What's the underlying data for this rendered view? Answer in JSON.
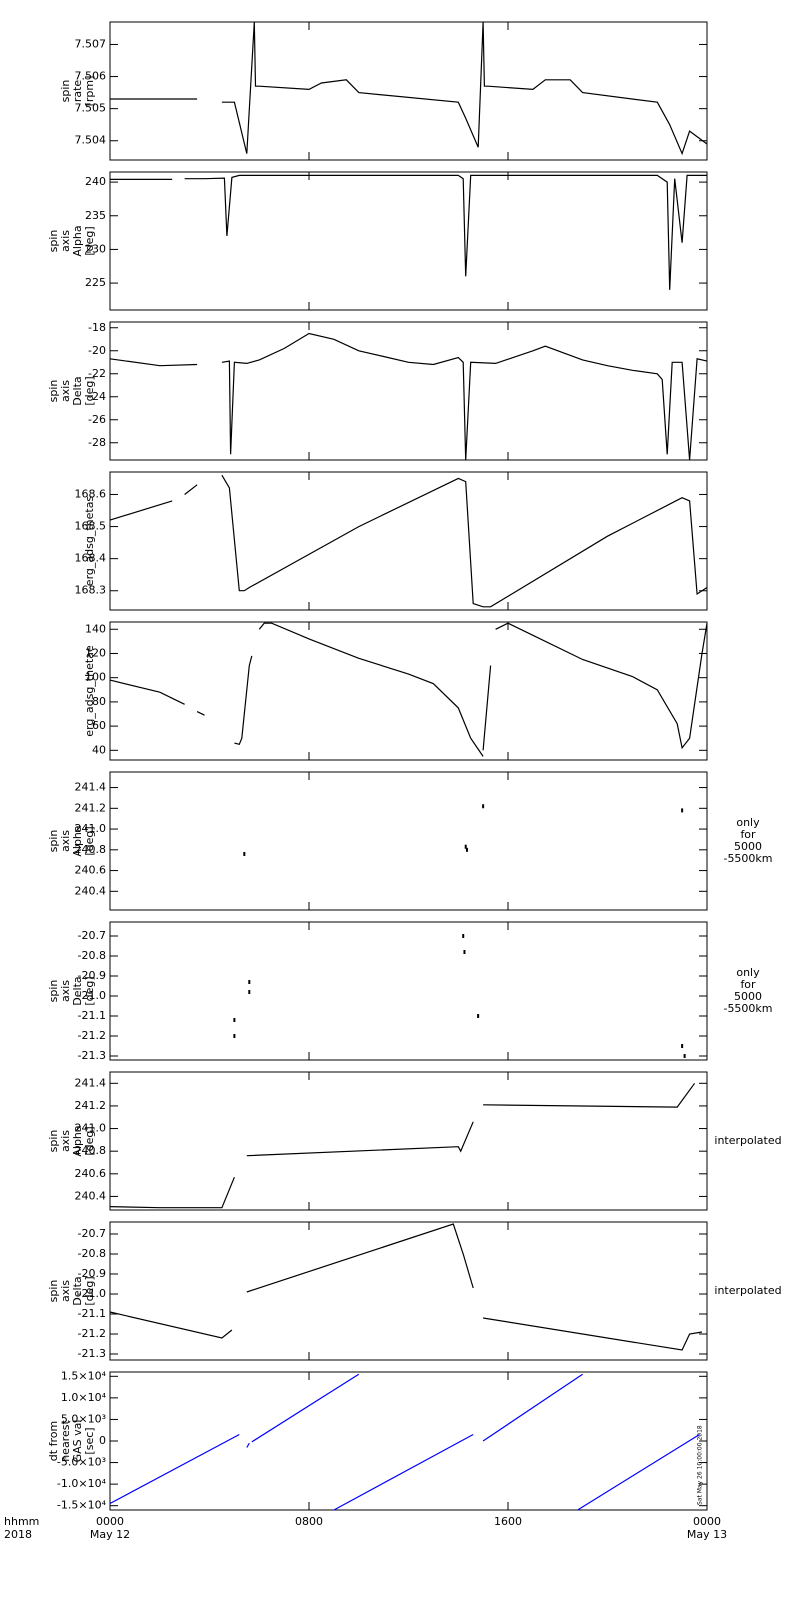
{
  "chart_data": [
    {
      "type": "line",
      "ylabel": [
        "spin",
        "rate",
        "[rpm]"
      ],
      "color": "#000000",
      "xlim": [
        0,
        24
      ],
      "xticks": [
        0,
        8,
        16,
        24
      ],
      "ylim": [
        7.5034,
        7.5077
      ],
      "yticks": [
        7.504,
        7.505,
        7.506,
        7.507
      ],
      "x": [
        0,
        3.5,
        null,
        4.5,
        5.0,
        5.5,
        5.8,
        5.85,
        6.0,
        8.0,
        8.5,
        9.5,
        10.0,
        14.0,
        14.3,
        14.8,
        15.0,
        15.05,
        15.2,
        17.0,
        17.5,
        18.5,
        19.0,
        22.0,
        22.5,
        23.0,
        23.3,
        24.0
      ],
      "values": [
        7.5053,
        7.5053,
        null,
        7.5052,
        7.5052,
        7.5036,
        7.5077,
        7.5057,
        7.5057,
        7.5056,
        7.5058,
        7.5059,
        7.5055,
        7.5052,
        7.5047,
        7.5038,
        7.5077,
        7.5057,
        7.5057,
        7.5056,
        7.5059,
        7.5059,
        7.5055,
        7.5052,
        7.5045,
        7.5036,
        7.5043,
        7.5039
      ]
    },
    {
      "type": "line",
      "ylabel": [
        "spin",
        "axis",
        "Alpha",
        "[deg]"
      ],
      "color": "#000000",
      "xlim": [
        0,
        24
      ],
      "xticks": [
        0,
        8,
        16,
        24
      ],
      "ylim": [
        221,
        241.5
      ],
      "yticks": [
        225,
        230,
        235,
        240
      ],
      "x": [
        0,
        2.5,
        null,
        3.0,
        3.8,
        4.6,
        4.7,
        4.9,
        5.2,
        14.0,
        14.2,
        14.3,
        14.5,
        22.0,
        22.4,
        22.5,
        22.7,
        23.0,
        23.2,
        24.0
      ],
      "values": [
        240.4,
        240.4,
        null,
        240.5,
        240.5,
        240.6,
        232,
        240.7,
        241,
        241,
        240.5,
        226,
        241,
        241,
        240,
        224,
        240.5,
        231,
        241,
        241
      ]
    },
    {
      "type": "line",
      "ylabel": [
        "spin",
        "axis",
        "Delta",
        "[deg]"
      ],
      "color": "#000000",
      "xlim": [
        0,
        24
      ],
      "xticks": [
        0,
        8,
        16,
        24
      ],
      "ylim": [
        -29.5,
        -17.5
      ],
      "yticks": [
        -28,
        -26,
        -24,
        -22,
        -20,
        -18
      ],
      "x": [
        0,
        2.0,
        3.5,
        null,
        4.5,
        4.8,
        4.85,
        5.0,
        5.5,
        6.0,
        7.0,
        8.0,
        9.0,
        10.0,
        11.0,
        12.0,
        13.0,
        14.0,
        14.2,
        14.3,
        14.5,
        15.5,
        17.0,
        17.5,
        19.0,
        20.0,
        21.0,
        22.0,
        22.2,
        22.4,
        22.6,
        23.0,
        23.3,
        23.6,
        24.0
      ],
      "values": [
        -20.7,
        -21.3,
        -21.2,
        null,
        -21,
        -20.9,
        -29,
        -21,
        -21.1,
        -20.8,
        -19.8,
        -18.5,
        -19,
        -20,
        -20.5,
        -21,
        -21.2,
        -20.6,
        -21,
        -29.5,
        -21,
        -21.1,
        -20,
        -19.6,
        -20.8,
        -21.3,
        -21.7,
        -22,
        -22.5,
        -29,
        -21,
        -21,
        -29.5,
        -20.7,
        -20.9
      ]
    },
    {
      "type": "line",
      "ylabel": [
        "erg_adsg_thetas"
      ],
      "color": "#000000",
      "xlim": [
        0,
        24
      ],
      "xticks": [
        0,
        8,
        16,
        24
      ],
      "ylim": [
        168.24,
        168.67
      ],
      "yticks": [
        168.3,
        168.4,
        168.5,
        168.6
      ],
      "x": [
        0,
        2.5,
        null,
        3.0,
        3.5,
        null,
        4.5,
        4.8,
        5.2,
        5.4,
        5.6,
        10.0,
        14.0,
        14.3,
        14.6,
        15.0,
        15.3,
        20.0,
        23.0,
        23.3,
        23.6,
        24.0
      ],
      "values": [
        168.52,
        168.58,
        null,
        168.6,
        168.63,
        null,
        168.66,
        168.62,
        168.3,
        168.3,
        168.31,
        168.5,
        168.65,
        168.64,
        168.26,
        168.25,
        168.25,
        168.47,
        168.59,
        168.58,
        168.29,
        168.31
      ]
    },
    {
      "type": "line",
      "ylabel": [
        "erg_adsg_thetae"
      ],
      "color": "#000000",
      "xlim": [
        0,
        24
      ],
      "xticks": [
        0,
        8,
        16,
        24
      ],
      "ylim": [
        32,
        146
      ],
      "yticks": [
        40,
        60,
        80,
        100,
        120,
        140
      ],
      "x": [
        0,
        2.0,
        3.0,
        null,
        3.5,
        3.8,
        null,
        5.0,
        5.2,
        5.3,
        5.6,
        5.7,
        null,
        6.0,
        6.2,
        6.5,
        8.0,
        10.0,
        12.0,
        13.0,
        14.0,
        14.5,
        15.0,
        null,
        15.0,
        15.3,
        null,
        15.5,
        16.0,
        17.0,
        19.0,
        21.0,
        22.0,
        22.8,
        23.0,
        23.3,
        23.8,
        24.0
      ],
      "values": [
        98,
        88,
        78,
        null,
        72,
        69,
        null,
        46,
        45,
        50,
        110,
        118,
        null,
        140,
        145,
        145,
        132,
        116,
        103,
        95,
        75,
        50,
        35,
        null,
        40,
        110,
        null,
        140,
        145,
        135,
        115,
        101,
        90,
        62,
        42,
        50,
        120,
        145
      ]
    },
    {
      "type": "scatter",
      "ylabel": [
        "spin",
        "axis",
        "Alpha",
        "[deg]"
      ],
      "annotation": [
        "only",
        "for",
        "5000",
        "-5500km"
      ],
      "color": "#000000",
      "xlim": [
        0,
        24
      ],
      "xticks": [
        0,
        8,
        16,
        24
      ],
      "ylim": [
        240.22,
        241.55
      ],
      "yticks": [
        240.4,
        240.6,
        240.8,
        {
          "value": 241,
          "label": "241.0"
        },
        241.2,
        241.4
      ],
      "x": [
        5.4,
        14.3,
        14.35,
        15.0,
        23.0
      ],
      "values": [
        240.76,
        240.83,
        240.8,
        241.22,
        241.18
      ]
    },
    {
      "type": "scatter",
      "ylabel": [
        "spin",
        "axis",
        "Delta",
        "[deg]"
      ],
      "annotation": [
        "only",
        "for",
        "5000",
        "-5500km"
      ],
      "color": "#000000",
      "xlim": [
        0,
        24
      ],
      "xticks": [
        0,
        8,
        16,
        24
      ],
      "ylim": [
        -21.32,
        -20.63
      ],
      "yticks": [
        -21.3,
        -21.2,
        -21.1,
        {
          "value": -21,
          "label": "-21.0"
        },
        -20.9,
        -20.8,
        -20.7
      ],
      "x": [
        5.0,
        5.0,
        5.6,
        5.6,
        14.2,
        14.25,
        14.8,
        23.0,
        23.1
      ],
      "values": [
        -21.12,
        -21.2,
        -20.93,
        -20.98,
        -20.7,
        -20.78,
        -21.1,
        -21.25,
        -21.3
      ]
    },
    {
      "type": "line",
      "ylabel": [
        "spin",
        "axis",
        "Alpha",
        "[deg]"
      ],
      "annotation": [
        "interpolated"
      ],
      "color": "#000000",
      "xlim": [
        0,
        24
      ],
      "xticks": [
        0,
        8,
        16,
        24
      ],
      "ylim": [
        240.28,
        241.5
      ],
      "yticks": [
        240.4,
        240.6,
        240.8,
        {
          "value": 241,
          "label": "241.0"
        },
        241.2,
        241.4
      ],
      "x": [
        0,
        2.0,
        4.5,
        5.0,
        null,
        5.5,
        14.0,
        14.1,
        14.6,
        null,
        15.0,
        22.8,
        23.5
      ],
      "values": [
        240.31,
        240.3,
        240.3,
        240.57,
        null,
        240.76,
        240.84,
        240.8,
        241.06,
        null,
        241.21,
        241.19,
        241.4
      ]
    },
    {
      "type": "line",
      "ylabel": [
        "spin",
        "axis",
        "Delta",
        "[deg]"
      ],
      "annotation": [
        "interpolated"
      ],
      "color": "#000000",
      "xlim": [
        0,
        24
      ],
      "xticks": [
        0,
        8,
        16,
        24
      ],
      "ylim": [
        -21.33,
        -20.64
      ],
      "yticks": [
        -21.3,
        -21.2,
        -21.1,
        {
          "value": -21,
          "label": "-21.0"
        },
        -20.9,
        -20.8,
        -20.7
      ],
      "x": [
        0,
        4.5,
        4.9,
        null,
        5.5,
        13.8,
        14.2,
        14.6,
        null,
        15.0,
        23.0,
        23.3,
        23.8
      ],
      "values": [
        -21.09,
        -21.22,
        -21.18,
        null,
        -20.99,
        -20.65,
        -20.8,
        -20.97,
        null,
        -21.12,
        -21.28,
        -21.2,
        -21.19
      ]
    },
    {
      "type": "line",
      "ylabel": [
        "dt from",
        "nearest",
        "GAS val",
        "[sec]"
      ],
      "color": "#0000ff",
      "timestamp": "Sat May 26 10:00:00 2018",
      "xlim": [
        0,
        24
      ],
      "xticks": [
        {
          "value": 0,
          "label": "0000"
        },
        {
          "value": 8,
          "label": "0800"
        },
        {
          "value": 16,
          "label": "1600"
        },
        {
          "value": 24,
          "label": "0000"
        }
      ],
      "date_labels": [
        {
          "value": 0,
          "label": "May 12"
        },
        {
          "value": 24,
          "label": "May 13"
        }
      ],
      "x_label": [
        "hhmm",
        "2018"
      ],
      "ylim": [
        -16000,
        16000
      ],
      "yticks": [
        {
          "value": -15000,
          "label": "-1.5×10⁴"
        },
        {
          "value": -10000,
          "label": "-1.0×10⁴"
        },
        {
          "value": -5000,
          "label": "-5.0×10³"
        },
        0,
        {
          "value": 5000,
          "label": "5.0×10³"
        },
        {
          "value": 10000,
          "label": "1.0×10⁴"
        },
        {
          "value": 15000,
          "label": "1.5×10⁴"
        }
      ],
      "x": [
        0,
        5.2,
        null,
        5.5,
        5.6,
        null,
        5.7,
        10.0,
        null,
        9.0,
        14.6,
        null,
        15.0,
        19.0,
        null,
        18.8,
        23.7
      ],
      "values": [
        -14500,
        1500,
        null,
        -1500,
        -500,
        null,
        -200,
        15500,
        null,
        -16000,
        1500,
        null,
        0,
        15500,
        null,
        -16000,
        1500
      ]
    }
  ]
}
